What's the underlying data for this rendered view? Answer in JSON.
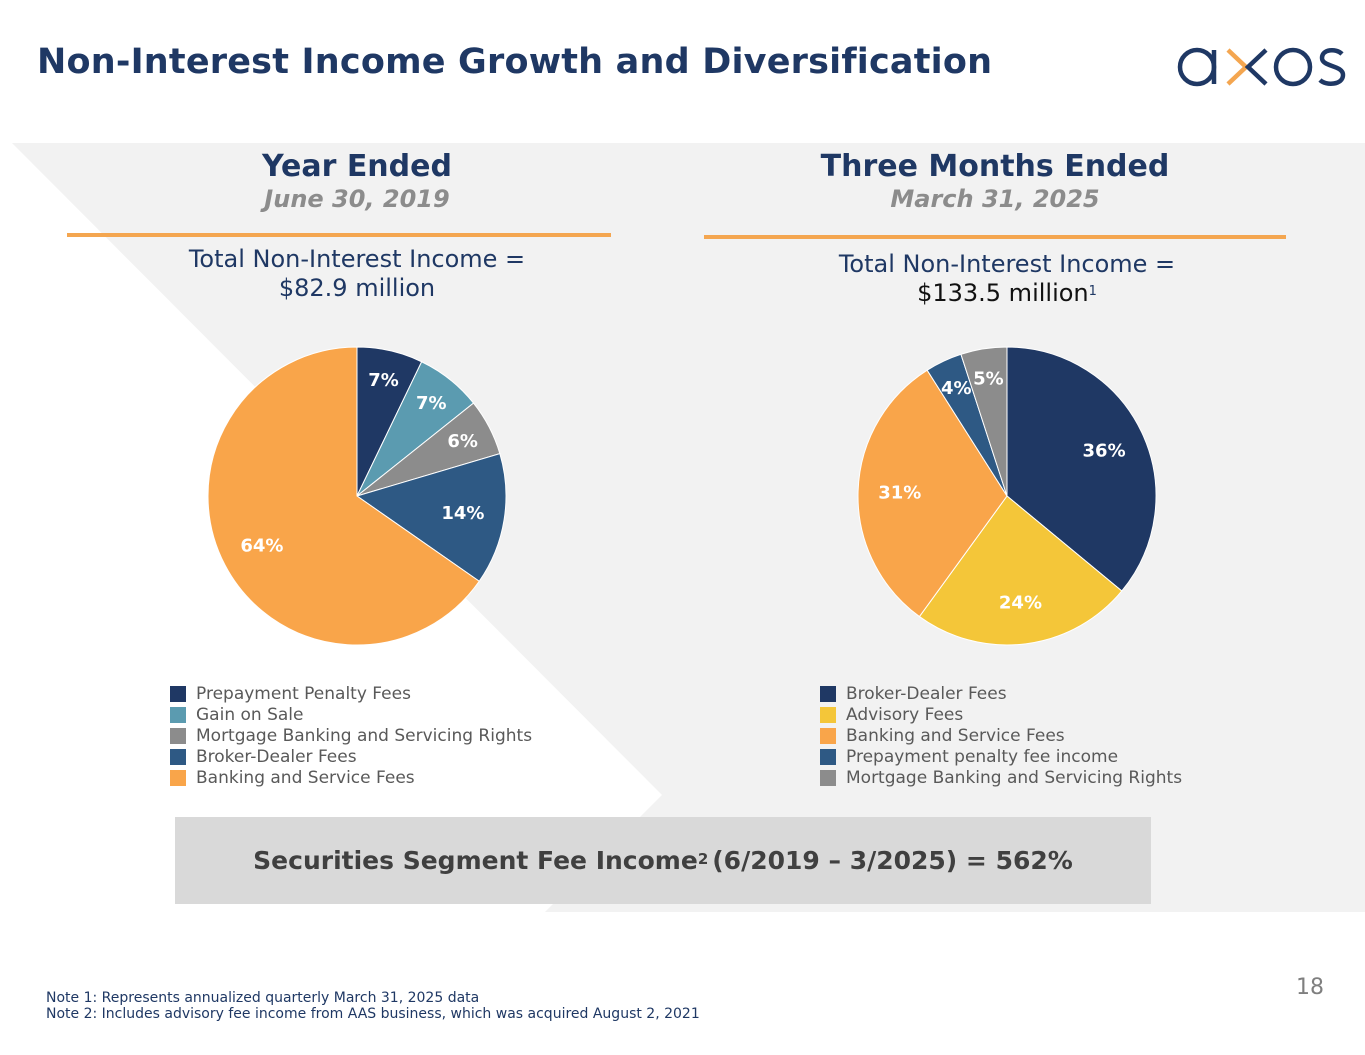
{
  "header": {
    "title": "Non-Interest Income Growth and Diversification",
    "logo_text": "axos",
    "brand_colors": {
      "navy": "#1f3864",
      "orange": "#f4a650"
    }
  },
  "panels": [
    {
      "heading": "Year Ended",
      "date": "June 30, 2019",
      "total_label": "Total Non-Interest Income =",
      "total_value": "$82.9 million",
      "total_footnote": ""
    },
    {
      "heading": "Three Months Ended",
      "date": "March 31, 2025",
      "total_label": "Total Non-Interest Income =",
      "total_value": "$133.5 million",
      "total_footnote": "1"
    }
  ],
  "chart_data": [
    {
      "type": "pie",
      "title": "Year Ended June 30, 2019 — Total Non-Interest Income = $82.9 million",
      "start": "12 o'clock, clockwise",
      "legend_position": "bottom",
      "slices": [
        {
          "name": "Prepayment Penalty Fees",
          "value": 7,
          "label": "7%",
          "color": "#1f3864"
        },
        {
          "name": "Gain on Sale",
          "value": 7,
          "label": "7%",
          "color": "#5b9bb0"
        },
        {
          "name": "Mortgage Banking and Servicing Rights",
          "value": 6,
          "label": "6%",
          "color": "#8c8c8c"
        },
        {
          "name": "Broker-Dealer Fees",
          "value": 14,
          "label": "14%",
          "color": "#2e5984"
        },
        {
          "name": "Banking and Service Fees",
          "value": 64,
          "label": "64%",
          "color": "#f9a54a"
        }
      ]
    },
    {
      "type": "pie",
      "title": "Three Months Ended March 31, 2025 — Total Non-Interest Income = $133.5 million",
      "start": "12 o'clock, clockwise",
      "legend_position": "bottom",
      "slices": [
        {
          "name": "Broker-Dealer Fees",
          "value": 36,
          "label": "36%",
          "color": "#1f3864"
        },
        {
          "name": "Advisory Fees",
          "value": 24,
          "label": "24%",
          "color": "#f4c639"
        },
        {
          "name": "Banking and Service Fees",
          "value": 31,
          "label": "31%",
          "color": "#f9a54a"
        },
        {
          "name": "Prepayment penalty fee income",
          "value": 4,
          "label": "4%",
          "color": "#2e5984"
        },
        {
          "name": "Mortgage Banking and Servicing Rights",
          "value": 5,
          "label": "5%",
          "color": "#8c8c8c"
        }
      ]
    }
  ],
  "callout": {
    "text_before": "Securities Segment Fee Income",
    "footnote": "2",
    "text_after": "(6/2019 – 3/2025) = 562%"
  },
  "notes": [
    "Note 1: Represents annualized quarterly March 31, 2025 data",
    "Note 2: Includes advisory fee income from AAS business, which was acquired August 2, 2021"
  ],
  "page_number": "18"
}
